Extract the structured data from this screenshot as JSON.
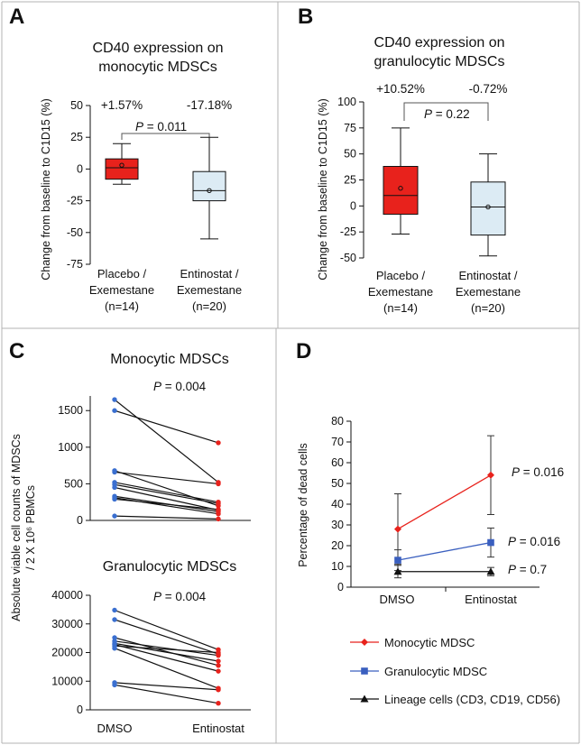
{
  "panels": {
    "a": "A",
    "b": "B",
    "c": "C",
    "d": "D"
  },
  "chart_data": [
    {
      "id": "A",
      "type": "box",
      "title_lines": [
        "CD40 expression on",
        "monocytic MDSCs"
      ],
      "ylabel": "Change from baseline to C1D15 (%)",
      "ylim": [
        -75,
        50
      ],
      "yticks": [
        -75,
        -50,
        -25,
        0,
        25,
        50
      ],
      "groups": [
        {
          "label_lines": [
            "Placebo /",
            "Exemestane",
            "(n=14)"
          ],
          "pct": "+1.57%",
          "color": "#e8221c",
          "min": -12,
          "q1": -8,
          "median": 1,
          "q3": 8,
          "max": 20,
          "mean": 3
        },
        {
          "label_lines": [
            "Entinostat /",
            "Exemestane",
            "(n=20)"
          ],
          "pct": "-17.18%",
          "color": "#dcebf4",
          "min": -55,
          "q1": -25,
          "median": -17,
          "q3": -2,
          "max": 25,
          "mean": -17
        }
      ],
      "p_label": "P",
      "p_value": " = 0.011"
    },
    {
      "id": "B",
      "type": "box",
      "title_lines": [
        "CD40 expression on",
        "granulocytic MDSCs"
      ],
      "ylabel": "Change from baseline to C1D15 (%)",
      "ylim": [
        -50,
        100
      ],
      "yticks": [
        -50,
        -25,
        0,
        25,
        50,
        75,
        100
      ],
      "groups": [
        {
          "label_lines": [
            "Placebo /",
            "Exemestane",
            "(n=14)"
          ],
          "pct": "+10.52%",
          "color": "#e8221c",
          "min": -27,
          "q1": -8,
          "median": 10,
          "q3": 38,
          "max": 75,
          "mean": 17
        },
        {
          "label_lines": [
            "Entinostat /",
            "Exemestane",
            "(n=20)"
          ],
          "pct": "-0.72%",
          "color": "#dcebf4",
          "min": -48,
          "q1": -28,
          "median": -1,
          "q3": 23,
          "max": 50,
          "mean": -1
        }
      ],
      "p_label": "P",
      "p_value": " = 0.22"
    },
    {
      "id": "C-top",
      "type": "paired-line",
      "title": "Monocytic MDSCs",
      "ylim": [
        0,
        1700
      ],
      "yticks": [
        0,
        500,
        1000,
        1500
      ],
      "categories": [
        "DMSO",
        "Entinostat"
      ],
      "pairs": [
        [
          1650,
          520
        ],
        [
          1500,
          1060
        ],
        [
          680,
          200
        ],
        [
          660,
          500
        ],
        [
          520,
          250
        ],
        [
          490,
          230
        ],
        [
          450,
          140
        ],
        [
          330,
          120
        ],
        [
          310,
          90
        ],
        [
          290,
          150
        ],
        [
          60,
          20
        ]
      ],
      "p_label": "P",
      "p_value": " = 0.004"
    },
    {
      "id": "C-bottom",
      "type": "paired-line",
      "title": "Granulocytic MDSCs",
      "ylim": [
        0,
        40000
      ],
      "yticks": [
        0,
        10000,
        20000,
        30000,
        40000
      ],
      "categories": [
        "DMSO",
        "Entinostat"
      ],
      "pairs": [
        [
          34800,
          21000
        ],
        [
          31500,
          19500
        ],
        [
          25200,
          15500
        ],
        [
          24000,
          19000
        ],
        [
          23200,
          17000
        ],
        [
          22800,
          13500
        ],
        [
          22300,
          20000
        ],
        [
          21500,
          7500
        ],
        [
          9500,
          7000
        ],
        [
          8700,
          2300
        ]
      ],
      "p_label": "P",
      "p_value": " = 0.004",
      "shared_ylabel_lines": [
        "Absolute viable cell counts of MDSCs",
        "/ 2 X 10⁶ PBMCs"
      ]
    },
    {
      "id": "D",
      "type": "line-errorbar",
      "ylabel": "Percentage of dead cells",
      "ylim": [
        0,
        80
      ],
      "yticks": [
        0,
        10,
        20,
        30,
        40,
        50,
        60,
        70,
        80
      ],
      "categories": [
        "DMSO",
        "Entinostat"
      ],
      "series": [
        {
          "name": "Monocytic MDSC",
          "color": "#e8221c",
          "marker": "diamond",
          "values": [
            28,
            54
          ],
          "err": [
            17,
            19
          ],
          "p_label": "P",
          "p_value": " = 0.016"
        },
        {
          "name": "Granulocytic MDSC",
          "color": "#3a5fbf",
          "marker": "square",
          "values": [
            13,
            21.5
          ],
          "err": [
            5,
            7
          ],
          "p_label": "P",
          "p_value": " = 0.016"
        },
        {
          "name": "Lineage cells (CD3, CD19, CD56)",
          "color": "#111111",
          "marker": "triangle",
          "values": [
            7.5,
            7.5
          ],
          "err": [
            3,
            2
          ],
          "p_label": "P",
          "p_value": " = 0.7"
        }
      ]
    }
  ]
}
